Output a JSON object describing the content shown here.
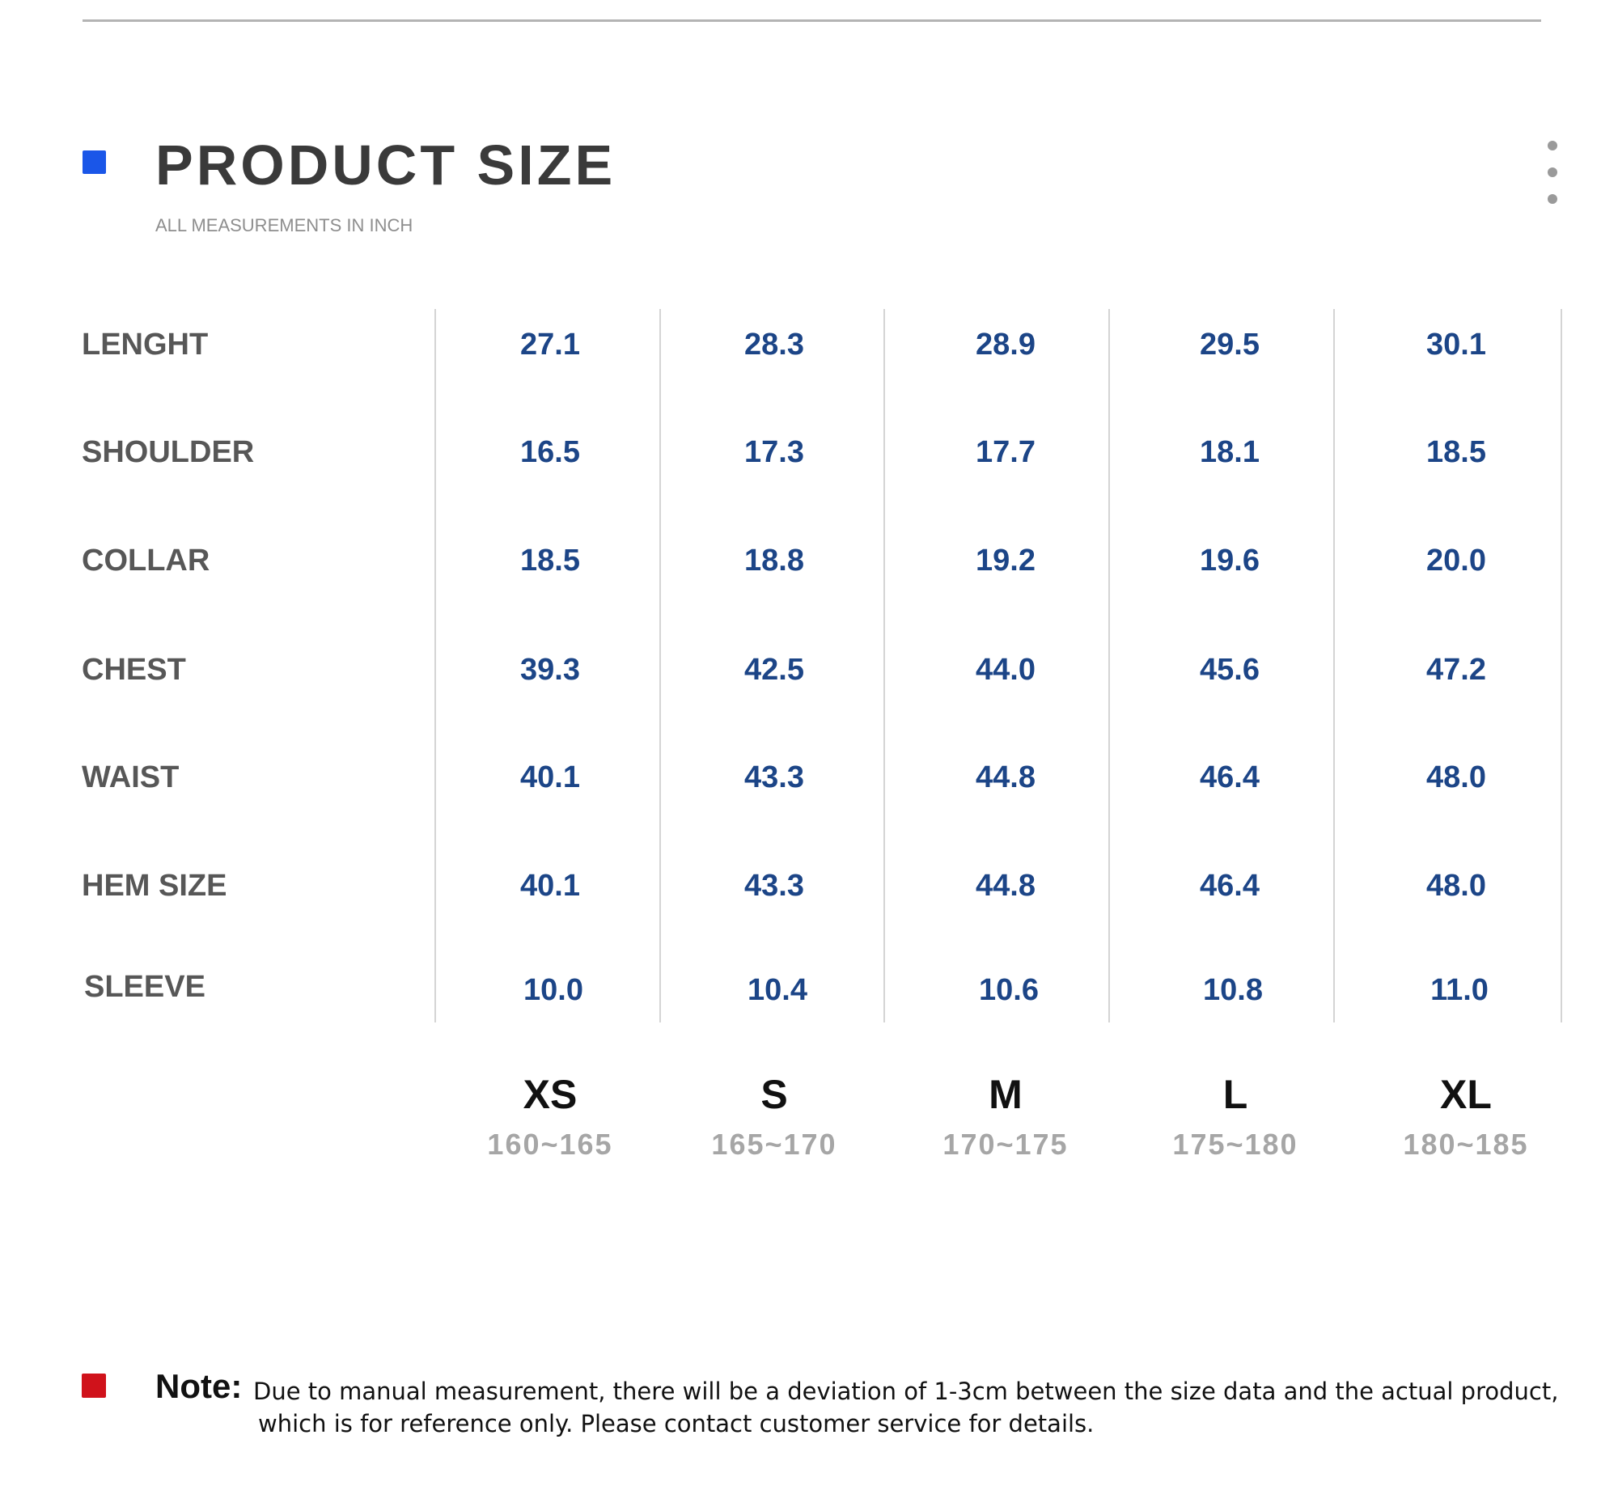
{
  "header": {
    "title": "PRODUCT SIZE",
    "subtitle": "ALL MEASUREMENTS IN INCH",
    "marker_color": "#1a56e8",
    "menu_icon": "vertical-ellipsis-icon"
  },
  "table": {
    "sizes": [
      {
        "label": "XS",
        "range": "160~165"
      },
      {
        "label": "S",
        "range": "165~170"
      },
      {
        "label": "M",
        "range": "170~175"
      },
      {
        "label": "L",
        "range": "175~180"
      },
      {
        "label": "XL",
        "range": "180~185"
      }
    ],
    "rows": [
      {
        "label": "LENGHT",
        "values": [
          "27.1",
          "28.3",
          "28.9",
          "29.5",
          "30.1"
        ]
      },
      {
        "label": "SHOULDER",
        "values": [
          "16.5",
          "17.3",
          "17.7",
          "18.1",
          "18.5"
        ]
      },
      {
        "label": "COLLAR",
        "values": [
          "18.5",
          "18.8",
          "19.2",
          "19.6",
          "20.0"
        ]
      },
      {
        "label": "CHEST",
        "values": [
          "39.3",
          "42.5",
          "44.0",
          "45.6",
          "47.2"
        ]
      },
      {
        "label": "WAIST",
        "values": [
          "40.1",
          "43.3",
          "44.8",
          "46.4",
          "48.0"
        ]
      },
      {
        "label": "HEM SIZE",
        "values": [
          "40.1",
          "43.3",
          "44.8",
          "46.4",
          "48.0"
        ]
      },
      {
        "label": "SLEEVE",
        "values": [
          "10.0",
          "10.4",
          "10.6",
          "10.8",
          "11.0"
        ]
      }
    ],
    "value_color": "#1c4587"
  },
  "note": {
    "label": "Note:",
    "line1": "Due to manual measurement, there will be a deviation of 1-3cm between the size data and the actual product,",
    "line2": "which is for reference only. Please contact customer service for details.",
    "marker_color": "#d0121b"
  }
}
